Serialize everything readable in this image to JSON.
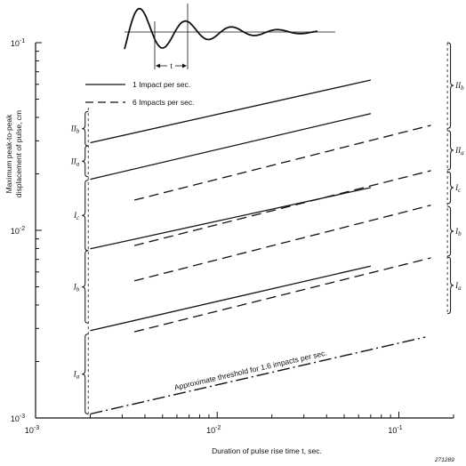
{
  "chart_data": {
    "type": "line",
    "xlabel": "Duration of pulse rise time t, sec.",
    "ylabel_lines": [
      "Maximum peak-to-peak",
      "displacement of pulse, cm"
    ],
    "xscale": "log",
    "yscale": "log",
    "xlim": [
      0.001,
      0.2
    ],
    "ylim": [
      0.001,
      0.1
    ],
    "xticks": [
      {
        "value": 0.001,
        "label": "10",
        "exp": "-3"
      },
      {
        "value": 0.01,
        "label": "10",
        "exp": "-2"
      },
      {
        "value": 0.1,
        "label": "10",
        "exp": "-1"
      }
    ],
    "yticks": [
      {
        "value": 0.001,
        "label": "10",
        "exp": "-3"
      },
      {
        "value": 0.01,
        "label": "10",
        "exp": "-2"
      },
      {
        "value": 0.1,
        "label": "10",
        "exp": "-1"
      }
    ],
    "legend": [
      {
        "label": "1 Impact per sec.",
        "style": "solid"
      },
      {
        "label": "6 Impacts per sec.",
        "style": "dashed"
      }
    ],
    "series": [
      {
        "style": "solid",
        "x": [
          0.002,
          0.07
        ],
        "y": [
          0.0293,
          0.0632
        ]
      },
      {
        "style": "solid",
        "x": [
          0.002,
          0.07
        ],
        "y": [
          0.0187,
          0.0419
        ]
      },
      {
        "style": "solid",
        "x": [
          0.002,
          0.07
        ],
        "y": [
          0.00797,
          0.0169
        ]
      },
      {
        "style": "solid",
        "x": [
          0.002,
          0.07
        ],
        "y": [
          0.00292,
          0.00645
        ]
      },
      {
        "style": "dashed",
        "x": [
          0.0035,
          0.15
        ],
        "y": [
          0.0145,
          0.0363
        ]
      },
      {
        "style": "dashed",
        "x": [
          0.0035,
          0.15
        ],
        "y": [
          0.0083,
          0.0208
        ]
      },
      {
        "style": "dashed",
        "x": [
          0.0035,
          0.15
        ],
        "y": [
          0.00538,
          0.0136
        ]
      },
      {
        "style": "dashed",
        "x": [
          0.0035,
          0.15
        ],
        "y": [
          0.00288,
          0.00713
        ]
      },
      {
        "style": "dashdot",
        "x": [
          0.002,
          0.14
        ],
        "y": [
          0.00105,
          0.0027
        ]
      }
    ],
    "annotation": "Approximate threshold for 1.6 impacts per sec.",
    "brackets_left": [
      {
        "label": "II",
        "sub": "b",
        "y": [
          0.0282,
          0.043
        ]
      },
      {
        "label": "II",
        "sub": "a",
        "y": [
          0.0193,
          0.0282
        ]
      },
      {
        "label": "I",
        "sub": "c",
        "y": [
          0.0078,
          0.0185
        ]
      },
      {
        "label": "I",
        "sub": "b",
        "y": [
          0.0032,
          0.0078
        ]
      },
      {
        "label": "I",
        "sub": "a",
        "y": [
          0.00105,
          0.0028
        ]
      }
    ],
    "brackets_right": [
      {
        "label": "II",
        "sub": "b",
        "y": [
          0.035,
          0.1
        ]
      },
      {
        "label": "II",
        "sub": "a",
        "y": [
          0.021,
          0.034
        ]
      },
      {
        "label": "I",
        "sub": "c",
        "y": [
          0.0139,
          0.0205
        ]
      },
      {
        "label": "I",
        "sub": "b",
        "y": [
          0.0073,
          0.0134
        ]
      },
      {
        "label": "I",
        "sub": "a",
        "y": [
          0.0036,
          0.0072
        ]
      }
    ],
    "inset": {
      "t_label": "t"
    },
    "figure_number": "271289"
  }
}
